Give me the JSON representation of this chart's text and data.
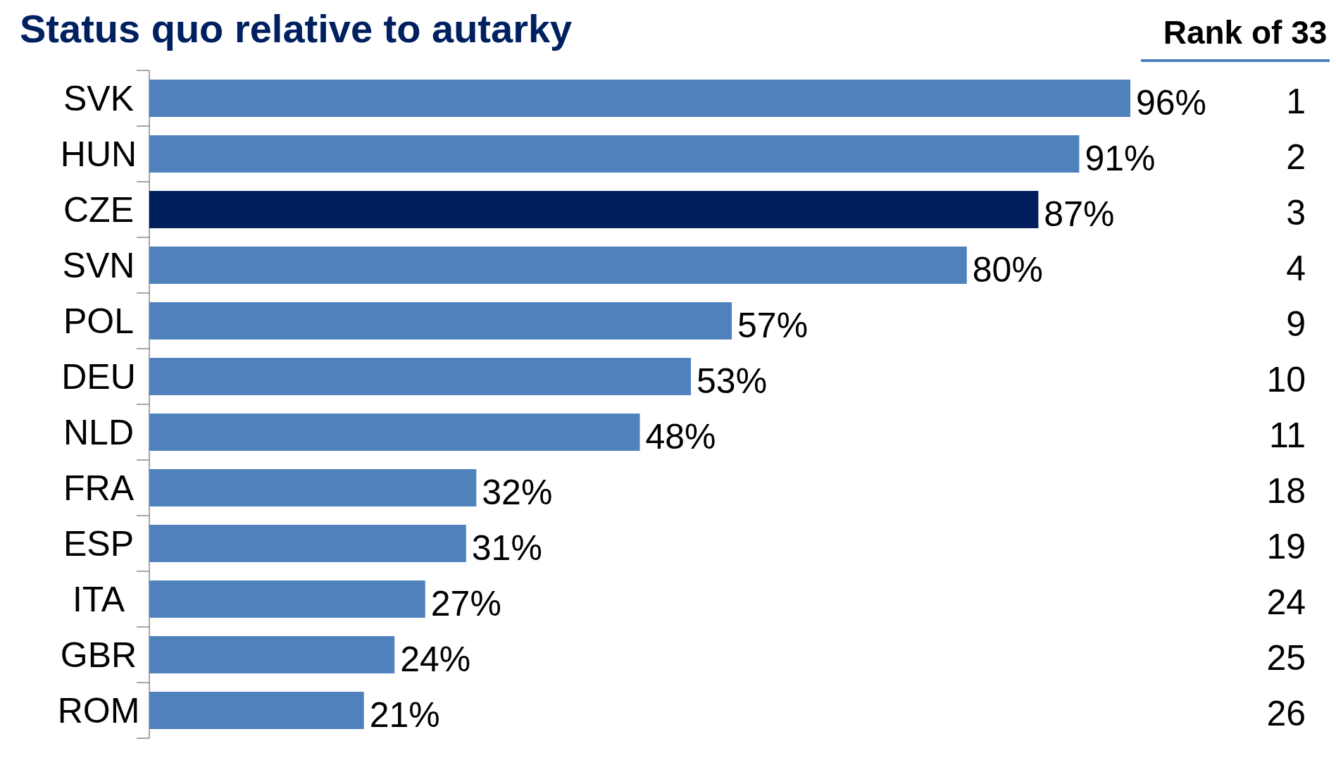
{
  "chart_data": {
    "type": "bar",
    "orientation": "horizontal",
    "title": "Status quo relative to autarky",
    "categories": [
      "SVK",
      "HUN",
      "CZE",
      "SVN",
      "POL",
      "DEU",
      "NLD",
      "FRA",
      "ESP",
      "ITA",
      "GBR",
      "ROM"
    ],
    "values": [
      96,
      91,
      87,
      80,
      57,
      53,
      48,
      32,
      31,
      27,
      24,
      21
    ],
    "value_labels": [
      "96%",
      "91%",
      "87%",
      "80%",
      "57%",
      "53%",
      "48%",
      "32%",
      "31%",
      "27%",
      "24%",
      "21%"
    ],
    "colors": [
      "#4f81bd",
      "#4f81bd",
      "#001f5c",
      "#4f81bd",
      "#4f81bd",
      "#4f81bd",
      "#4f81bd",
      "#4f81bd",
      "#4f81bd",
      "#4f81bd",
      "#4f81bd",
      "#4f81bd"
    ],
    "annotations": [
      "Rank of 33",
      "1",
      "2",
      "3",
      "4",
      "9",
      "10",
      "11",
      "18",
      "19",
      "24",
      "25",
      "26"
    ]
  }
}
